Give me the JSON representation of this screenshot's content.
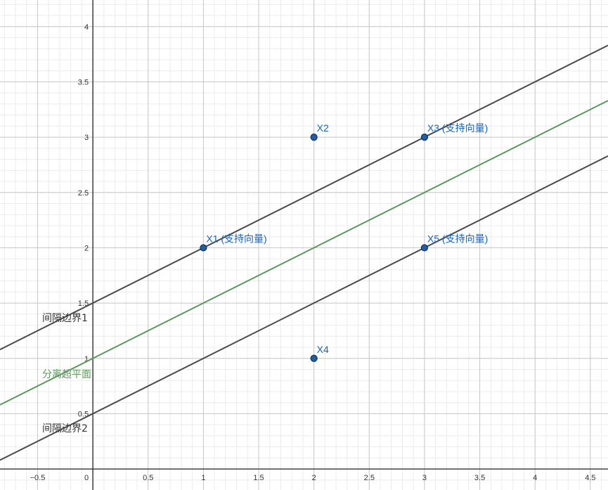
{
  "chart_data": {
    "type": "line",
    "title": "",
    "xlabel": "",
    "ylabel": "",
    "xlim": [
      -0.84,
      4.66
    ],
    "ylim": [
      -0.19,
      4.24
    ],
    "grid": true,
    "x_ticks": [
      -0.5,
      0,
      0.5,
      1,
      1.5,
      2,
      2.5,
      3,
      3.5,
      4,
      4.5
    ],
    "x_tick_labels": [
      "−0.5",
      "0",
      "0.5",
      "1",
      "1.5",
      "2",
      "2.5",
      "3",
      "3.5",
      "4",
      "4.5"
    ],
    "y_ticks": [
      0.5,
      1,
      1.5,
      2,
      2.5,
      3,
      3.5,
      4
    ],
    "y_tick_labels": [
      "0.5",
      "1",
      "1.5",
      "2",
      "2.5",
      "3",
      "3.5",
      "4"
    ],
    "lines": [
      {
        "name": "间隔边界1",
        "slope": 0.5,
        "intercept": 1.5,
        "color": "#4a4a4a"
      },
      {
        "name": "分离超平面",
        "slope": 0.5,
        "intercept": 1.0,
        "color": "#5b9a5b"
      },
      {
        "name": "间隔边界2",
        "slope": 0.5,
        "intercept": 0.5,
        "color": "#4a4a4a"
      }
    ],
    "points": [
      {
        "name": "X1",
        "label": "X1  (支持向量)",
        "x": 1,
        "y": 2
      },
      {
        "name": "X2",
        "label": "X2",
        "x": 2,
        "y": 3
      },
      {
        "name": "X3",
        "label": "X3  (支持向量)",
        "x": 3,
        "y": 3
      },
      {
        "name": "X4",
        "label": "X4",
        "x": 2,
        "y": 1
      },
      {
        "name": "X5",
        "label": "X5  (支持向量)",
        "x": 3,
        "y": 2
      }
    ],
    "colors": {
      "point_fill": "#1f5fa8",
      "point_stroke": "#0d2f5a",
      "point_label": "#1565C0",
      "major_grid": "#c8c8c8",
      "minor_grid": "#ececec",
      "axis": "#222222"
    }
  }
}
